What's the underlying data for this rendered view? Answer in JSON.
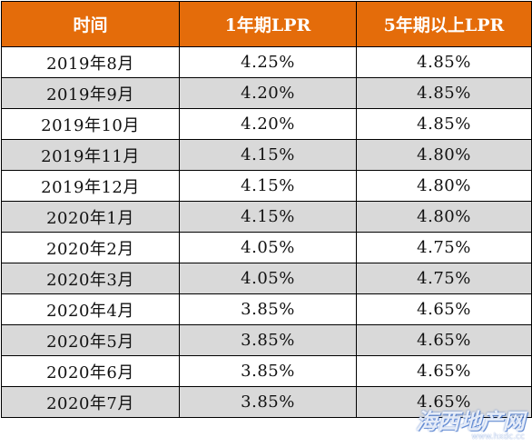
{
  "table": {
    "headers": [
      "时间",
      "1年期LPR",
      "5年期以上LPR"
    ],
    "rows": [
      [
        "2019年8月",
        "4.25%",
        "4.85%"
      ],
      [
        "2019年9月",
        "4.20%",
        "4.85%"
      ],
      [
        "2019年10月",
        "4.20%",
        "4.85%"
      ],
      [
        "2019年11月",
        "4.15%",
        "4.80%"
      ],
      [
        "2019年12月",
        "4.15%",
        "4.80%"
      ],
      [
        "2020年1月",
        "4.15%",
        "4.80%"
      ],
      [
        "2020年2月",
        "4.05%",
        "4.75%"
      ],
      [
        "2020年3月",
        "4.05%",
        "4.75%"
      ],
      [
        "2020年4月",
        "3.85%",
        "4.65%"
      ],
      [
        "2020年5月",
        "3.85%",
        "4.65%"
      ],
      [
        "2020年6月",
        "3.85%",
        "4.65%"
      ],
      [
        "2020年7月",
        "3.85%",
        "4.65%"
      ]
    ]
  },
  "colors": {
    "header_bg": "#e46c0a",
    "header_text": "#ffffff",
    "stripe": "#d9d9d9",
    "border": "#000000"
  },
  "watermark": {
    "text": "海西地产网",
    "url": "www.hxdc.cc"
  }
}
